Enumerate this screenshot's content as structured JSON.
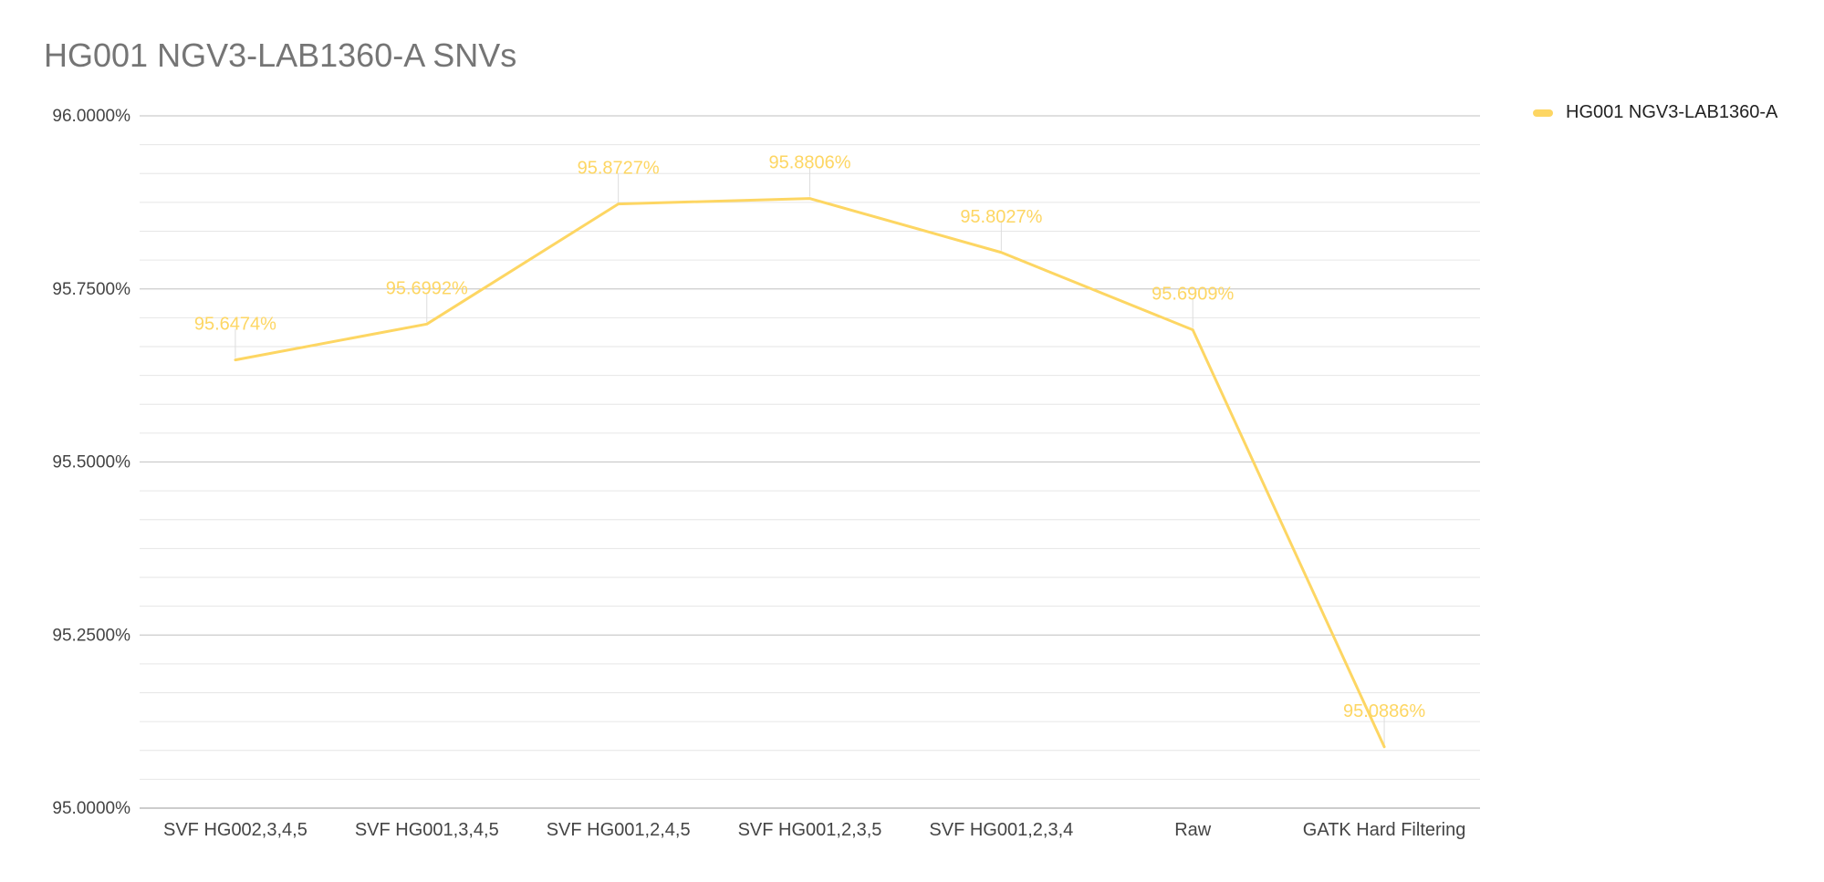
{
  "chart_data": {
    "type": "line",
    "title": "HG001 NGV3-LAB1360-A SNVs",
    "xlabel": "",
    "ylabel": "",
    "categories": [
      "SVF HG002,3,4,5",
      "SVF HG001,3,4,5",
      "SVF HG001,2,4,5",
      "SVF HG001,2,3,5",
      "SVF HG001,2,3,4",
      "Raw",
      "GATK Hard Filtering"
    ],
    "series": [
      {
        "name": "HG001 NGV3-LAB1360-A",
        "color": "#fdd663",
        "values": [
          95.6474,
          95.6992,
          95.8727,
          95.8806,
          95.8027,
          95.6909,
          95.0886
        ],
        "labels": [
          "95.6474%",
          "95.6992%",
          "95.8727%",
          "95.8806%",
          "95.8027%",
          "95.6909%",
          "95.0886%"
        ]
      }
    ],
    "ylim": [
      95.0,
      96.0
    ],
    "y_ticks": [
      95.0,
      95.25,
      95.5,
      95.75,
      96.0
    ],
    "y_tick_labels": [
      "95.0000%",
      "95.2500%",
      "95.5000%",
      "95.7500%",
      "96.0000%"
    ],
    "grid": true,
    "minor_gridlines_per_major": 5,
    "legend_position": "top-right",
    "colors": {
      "title": "#757575",
      "major_grid": "#cccccc",
      "minor_grid": "#e6e6e6",
      "axis_text": "#444444"
    }
  }
}
